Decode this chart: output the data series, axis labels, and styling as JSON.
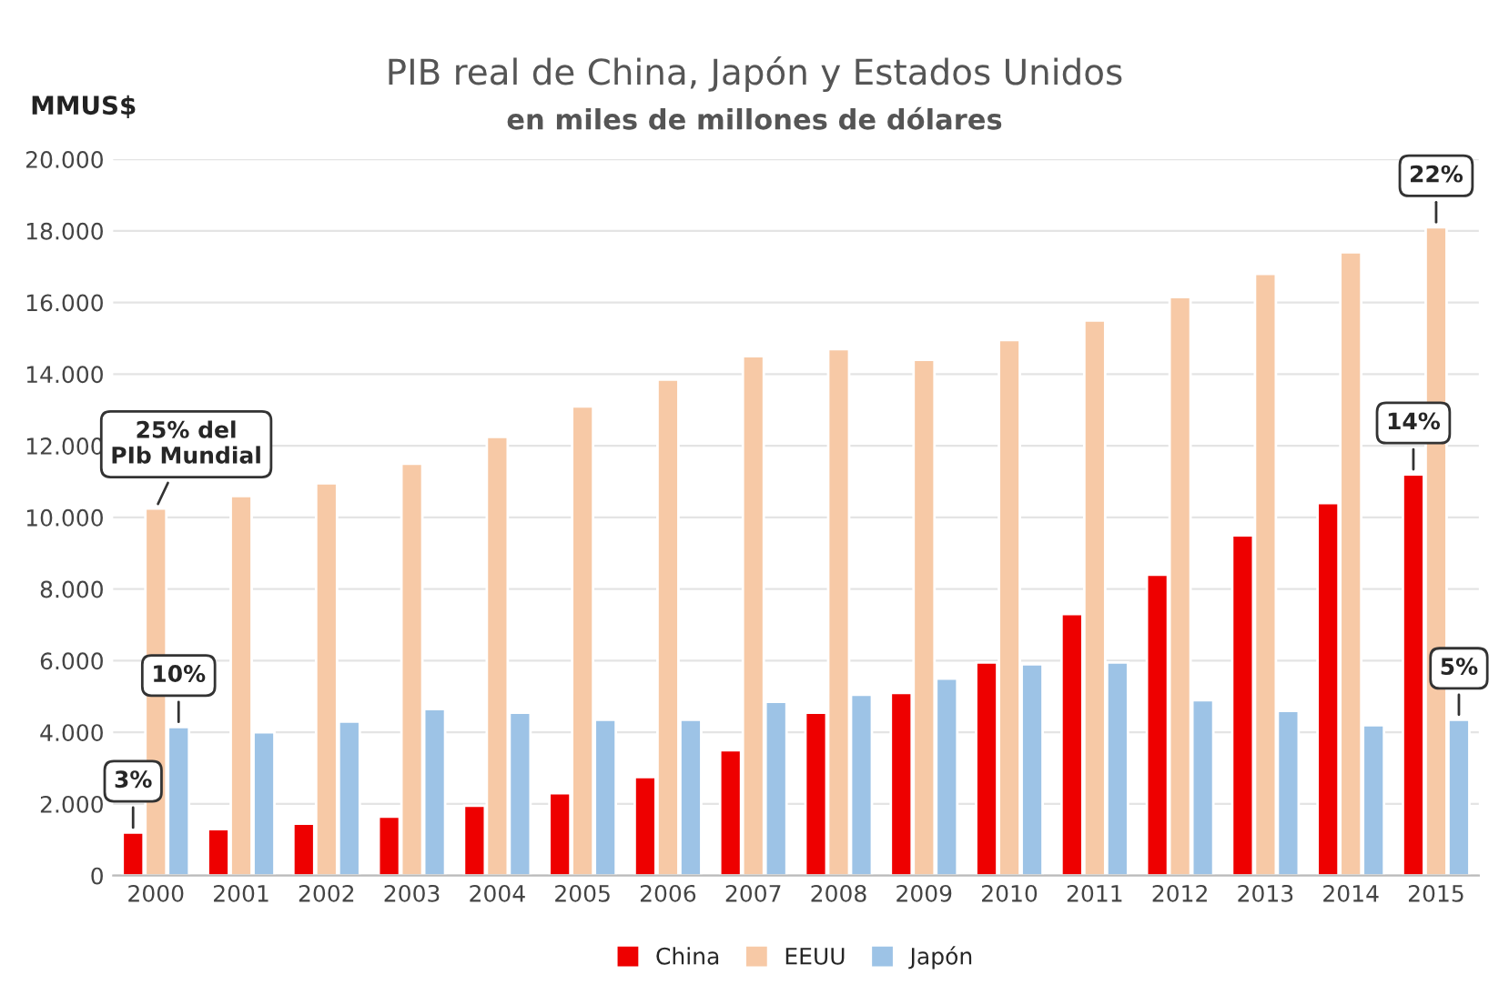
{
  "chart_data": {
    "type": "bar",
    "title": "PIB real de China, Japón y Estados Unidos",
    "subtitle": "en miles de millones de dólares",
    "ylabel": "MMUS$",
    "categories": [
      "2000",
      "2001",
      "2002",
      "2003",
      "2004",
      "2005",
      "2006",
      "2007",
      "2008",
      "2009",
      "2010",
      "2011",
      "2012",
      "2013",
      "2014",
      "2015"
    ],
    "series": [
      {
        "name": "China",
        "color": "#ee0000",
        "values": [
          1200,
          1300,
          1450,
          1650,
          1950,
          2300,
          2750,
          3500,
          4550,
          5100,
          5950,
          7300,
          8400,
          9500,
          10400,
          11200
        ]
      },
      {
        "name": "EEUU",
        "color": "#f7c9a6",
        "values": [
          10250,
          10600,
          10950,
          11500,
          12250,
          13100,
          13850,
          14500,
          14700,
          14400,
          14950,
          15500,
          16150,
          16800,
          17400,
          18100
        ]
      },
      {
        "name": "Japón",
        "color": "#9dc3e6",
        "values": [
          4150,
          4000,
          4300,
          4650,
          4550,
          4350,
          4350,
          4850,
          5050,
          5500,
          5900,
          5950,
          4900,
          4600,
          4200,
          4350
        ]
      }
    ],
    "ylim": [
      0,
      20000
    ],
    "yticks": [
      {
        "value": 0,
        "label": "0"
      },
      {
        "value": 2000,
        "label": "2.000"
      },
      {
        "value": 4000,
        "label": "4.000"
      },
      {
        "value": 6000,
        "label": "6.000"
      },
      {
        "value": 8000,
        "label": "8.000"
      },
      {
        "value": 10000,
        "label": "10.000"
      },
      {
        "value": 12000,
        "label": "12.000"
      },
      {
        "value": 14000,
        "label": "14.000"
      },
      {
        "value": 16000,
        "label": "16.000"
      },
      {
        "value": 18000,
        "label": "18.000"
      },
      {
        "value": 20000,
        "label": "20.000"
      }
    ],
    "grid": "y",
    "legend": "bottom",
    "annotations": [
      "3%",
      {
        "text": "25% del\nPIb Mundial",
        "x": "2000",
        "y": 10250
      },
      "10%",
      "14%",
      {
        "text": "22%",
        "x": "2015",
        "y": 18100
      },
      "5%"
    ]
  }
}
